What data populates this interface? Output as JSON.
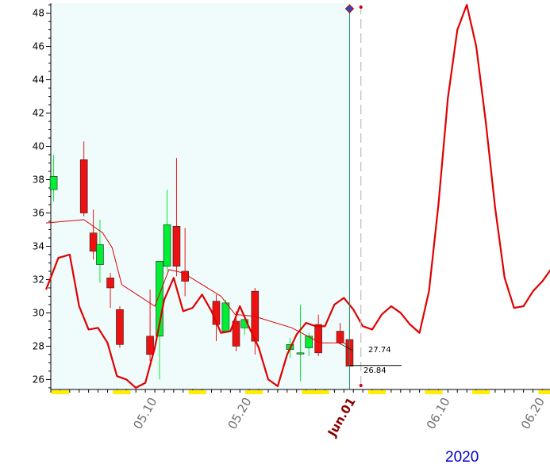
{
  "colors": {
    "panel_bg": "#f0fcfc",
    "up": "#00ee33",
    "down": "#ee1111",
    "line": "#e00000",
    "cursor": "#1e8c6a",
    "marker": "#ffee00",
    "year_text": "#0000cc"
  },
  "chart_data": {
    "type": "candlestick",
    "y_axis": {
      "range": [
        25.4,
        48.6
      ],
      "ticks": [
        26,
        28,
        30,
        32,
        34,
        36,
        38,
        40,
        42,
        44,
        46,
        48
      ]
    },
    "x_axis": {
      "labels": [
        {
          "text": "05.10",
          "x": 11.0,
          "highlight": false
        },
        {
          "text": "05.20",
          "x": 21.0,
          "highlight": false
        },
        {
          "text": "Jun.01",
          "x": 32.0,
          "highlight": true
        },
        {
          "text": "06.10",
          "x": 42.0,
          "highlight": false
        },
        {
          "text": "06.20",
          "x": 52.0,
          "highlight": false
        }
      ],
      "range": [
        0,
        52.8
      ]
    },
    "year": "2020",
    "candles": [
      {
        "x": 0.3,
        "o": 37.4,
        "h": 39.5,
        "l": 36.7,
        "c": 38.2
      },
      {
        "x": 3.5,
        "o": 39.2,
        "h": 40.3,
        "l": 35.8,
        "c": 36.0
      },
      {
        "x": 4.5,
        "o": 34.8,
        "h": 36.2,
        "l": 33.2,
        "c": 33.7
      },
      {
        "x": 5.2,
        "o": 32.9,
        "h": 35.6,
        "l": 31.8,
        "c": 34.1
      },
      {
        "x": 6.3,
        "o": 32.1,
        "h": 32.4,
        "l": 30.3,
        "c": 31.5
      },
      {
        "x": 7.3,
        "o": 30.2,
        "h": 30.4,
        "l": 27.9,
        "c": 28.1
      },
      {
        "x": 10.5,
        "o": 28.6,
        "h": 31.4,
        "l": 27.1,
        "c": 27.5
      },
      {
        "x": 11.5,
        "o": 28.6,
        "h": 32.9,
        "l": 26.0,
        "c": 33.1
      },
      {
        "x": 12.3,
        "o": 32.8,
        "h": 37.4,
        "l": 32.5,
        "c": 35.3
      },
      {
        "x": 13.3,
        "o": 35.2,
        "h": 39.3,
        "l": 32.2,
        "c": 32.8
      },
      {
        "x": 14.2,
        "o": 32.5,
        "h": 35.1,
        "l": 31.0,
        "c": 31.9
      },
      {
        "x": 17.5,
        "o": 30.7,
        "h": 31.1,
        "l": 28.3,
        "c": 29.3
      },
      {
        "x": 18.5,
        "o": 28.9,
        "h": 30.8,
        "l": 28.8,
        "c": 30.6
      },
      {
        "x": 19.6,
        "o": 29.5,
        "h": 30.1,
        "l": 27.7,
        "c": 28.0
      },
      {
        "x": 20.5,
        "o": 29.1,
        "h": 29.7,
        "l": 28.7,
        "c": 29.6
      },
      {
        "x": 21.6,
        "o": 31.3,
        "h": 31.5,
        "l": 27.5,
        "c": 28.3
      },
      {
        "x": 25.3,
        "o": 27.8,
        "h": 28.5,
        "l": 27.3,
        "c": 28.1
      },
      {
        "x": 26.4,
        "o": 27.6,
        "h": 30.5,
        "l": 25.9,
        "c": 27.6
      },
      {
        "x": 27.3,
        "o": 27.9,
        "h": 28.8,
        "l": 27.4,
        "c": 28.6
      },
      {
        "x": 28.3,
        "o": 29.3,
        "h": 29.9,
        "l": 27.4,
        "c": 27.6
      },
      {
        "x": 30.6,
        "o": 28.9,
        "h": 29.4,
        "l": 28.1,
        "c": 28.2
      },
      {
        "x": 31.6,
        "o": 28.4,
        "h": 29.5,
        "l": 26.8,
        "c": 26.8
      }
    ],
    "moving_average": {
      "x": [
        -0.5,
        3.5,
        5.5,
        6.5,
        7.5,
        11.0,
        12.5,
        14.0,
        18.0,
        19.5,
        21.5,
        25.5,
        28.5,
        30.0,
        31.0,
        31.7
      ],
      "y": [
        35.4,
        35.6,
        34.8,
        33.9,
        31.7,
        30.4,
        32.6,
        32.4,
        31.0,
        29.9,
        29.8,
        29.1,
        28.2,
        28.2,
        28.2,
        27.9
      ]
    },
    "forecast_line": {
      "x": [
        -0.5,
        0.8,
        2.0,
        3.0,
        4.0,
        5.0,
        6.0,
        7.0,
        8.0,
        9.0,
        10.0,
        11.0,
        12.0,
        13.0,
        14.0,
        15.0,
        16.0,
        17.0,
        18.0,
        19.0,
        20.0,
        21.0,
        22.0,
        23.0,
        24.0,
        25.0,
        26.0,
        27.0,
        28.0,
        29.0,
        30.0,
        31.0,
        32.0,
        33.0,
        34.0,
        35.0,
        36.0,
        37.0,
        38.0,
        39.0,
        40.0,
        41.0,
        42.0,
        43.0,
        44.0,
        45.0,
        46.0,
        47.0,
        48.0,
        49.0,
        50.0,
        51.0,
        52.0,
        53.0
      ],
      "y": [
        31.4,
        33.3,
        33.5,
        30.4,
        29.0,
        29.1,
        28.2,
        26.2,
        26.0,
        25.5,
        25.8,
        27.9,
        30.8,
        32.1,
        30.1,
        30.3,
        31.1,
        30.1,
        28.8,
        28.9,
        30.4,
        29.1,
        27.9,
        26.0,
        25.6,
        27.5,
        28.7,
        29.4,
        29.2,
        29.2,
        30.5,
        30.9,
        30.2,
        29.2,
        29.0,
        29.9,
        30.4,
        30.0,
        29.3,
        28.8,
        31.3,
        36.5,
        42.9,
        47.0,
        48.5,
        46.0,
        41.5,
        36.3,
        32.1,
        30.3,
        30.4,
        31.3,
        31.9,
        32.7
      ]
    },
    "annotations": {
      "price_upper": "27.74",
      "price_lower": "26.84"
    },
    "markers_x": [
      1.0,
      7.5,
      15.5,
      21.5,
      27.5,
      28.5,
      34.5,
      40.5,
      45.5,
      52.5
    ]
  }
}
